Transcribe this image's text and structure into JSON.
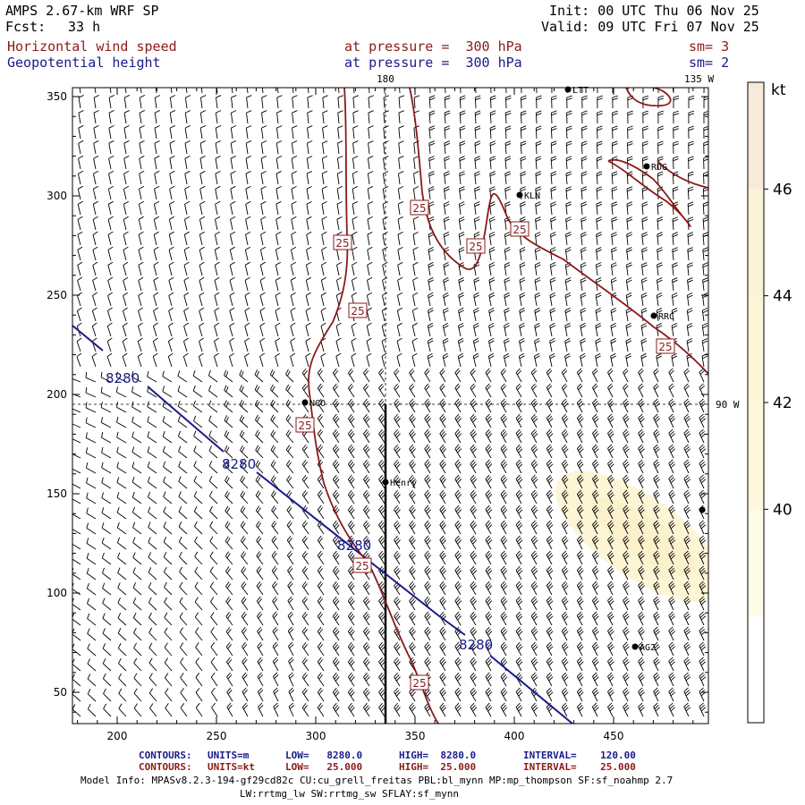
{
  "header": {
    "model": "AMPS 2.67-km WRF SP",
    "fcst_label": "Fcst:",
    "fcst_value": "33 h",
    "init": "Init: 00 UTC Thu 06 Nov 25",
    "valid": "Valid: 09 UTC Fri 07 Nov 25",
    "field1": "Horizontal wind speed",
    "field1_level": "at pressure =  300 hPa",
    "field1_sm": "sm= 3",
    "field2": "Geopotential height",
    "field2_level": "at pressure =  300 hPa",
    "field2_sm": "sm= 2"
  },
  "map_labels": {
    "lon_180": "180",
    "lon_135w": "135 W",
    "lon_90w": "90 W"
  },
  "axes": {
    "x_ticks": [
      "200",
      "250",
      "300",
      "350",
      "400",
      "450"
    ],
    "y_ticks": [
      "350",
      "300",
      "250",
      "200",
      "150",
      "100",
      "50"
    ]
  },
  "colorbar": {
    "unit": "kt",
    "ticks": [
      "46",
      "44",
      "42",
      "40"
    ],
    "colors": [
      "#f7ead9",
      "#fbf3d8",
      "#fcf6d6",
      "#fdf8dc",
      "#fefbe8",
      "#ffffff"
    ]
  },
  "stations": [
    {
      "name": "KLN"
    },
    {
      "name": "RDG"
    },
    {
      "name": "RRC"
    },
    {
      "name": "NCO"
    },
    {
      "name": "Henry"
    },
    {
      "name": "AG2"
    },
    {
      "name": "LTT"
    }
  ],
  "contours": {
    "height_label": "8280",
    "speed_label": "25",
    "height_color": "#1a1a8b",
    "speed_color": "#8b1a1a"
  },
  "footer": {
    "line1_label": "CONTOURS:",
    "line1_units": "UNITS=m",
    "line1_low": "LOW=   8280.0",
    "line1_high": "HIGH=  8280.0",
    "line1_interval": "INTERVAL=    120.00",
    "line2_label": "CONTOURS:",
    "line2_units": "UNITS=kt",
    "line2_low": "LOW=   25.000",
    "line2_high": "HIGH=  25.000",
    "line2_interval": "INTERVAL=    25.000",
    "model_info": "Model Info: MPASv8.2.3-194-gf29cd82c CU:cu_grell_freitas PBL:bl_mynn MP:mp_thompson SF:sf_noahmp 2.7",
    "model_info2": "LW:rrtmg_lw SW:rrtmg_sw SFLAY:sf_mynn"
  }
}
